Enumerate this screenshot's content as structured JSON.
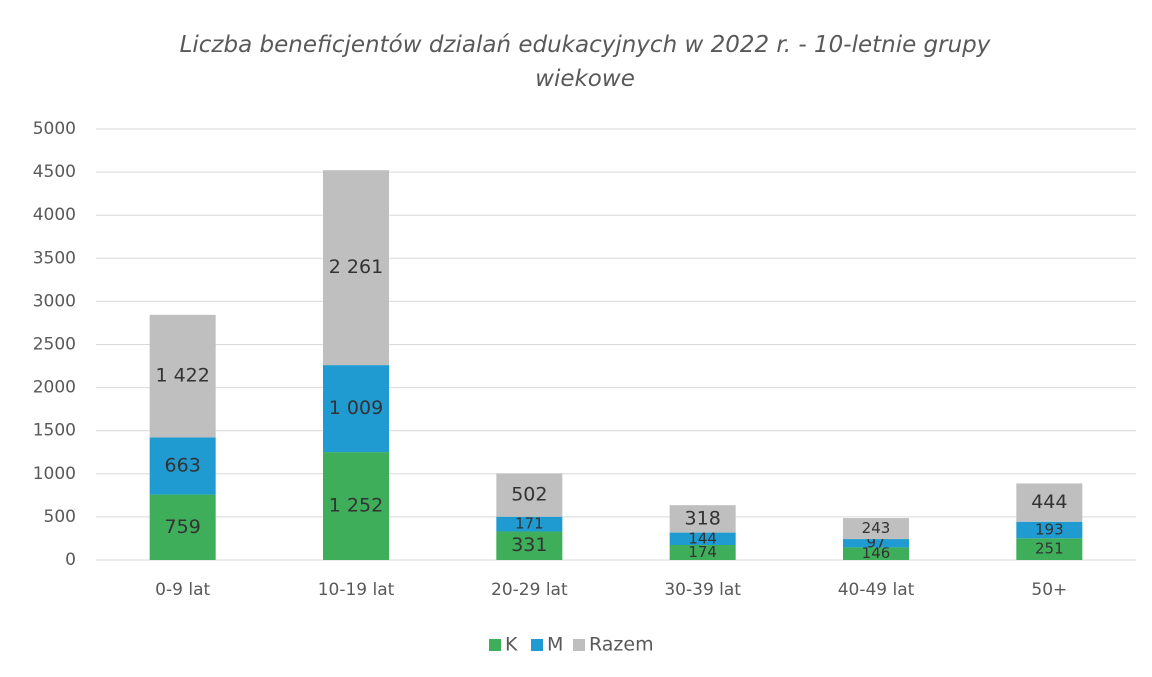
{
  "chart_data": {
    "type": "stacked_bar",
    "title": "Liczba beneficjentów dzialań edukacyjnych w 2022 r. - 10-letnie grupy wiekowe",
    "categories": [
      "0-9 lat",
      "10-19 lat",
      "20-29 lat",
      "30-39 lat",
      "40-49 lat",
      "50+"
    ],
    "series": [
      {
        "name": "K",
        "color": "#3fae5a",
        "values": [
          759,
          1252,
          331,
          174,
          146,
          251
        ],
        "value_labels": [
          "759",
          "1 252",
          "331",
          "174",
          "146",
          "251"
        ]
      },
      {
        "name": "M",
        "color": "#1f9bd1",
        "values": [
          663,
          1009,
          171,
          144,
          97,
          193
        ],
        "value_labels": [
          "663",
          "1 009",
          "171",
          "144",
          "97",
          "193"
        ]
      },
      {
        "name": "Razem",
        "color": "#bfbfbf",
        "values": [
          1422,
          2261,
          502,
          318,
          243,
          444
        ],
        "value_labels": [
          "1 422",
          "2 261",
          "502",
          "318",
          "243",
          "444"
        ]
      }
    ],
    "ylim": [
      0,
      5000
    ],
    "yticks": [
      0,
      500,
      1000,
      1500,
      2000,
      2500,
      3000,
      3500,
      4000,
      4500,
      5000
    ],
    "grid": true,
    "legend": "bottom"
  }
}
